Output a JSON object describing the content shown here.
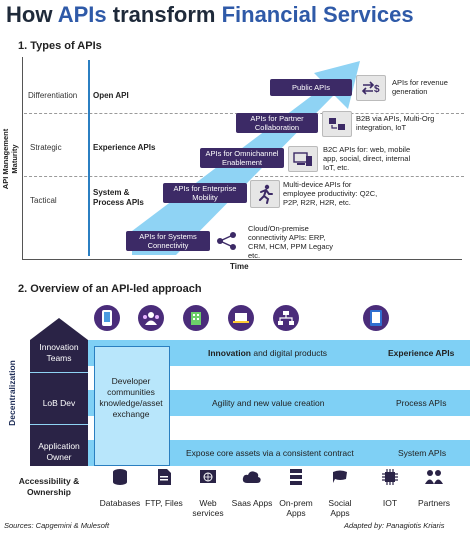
{
  "title": {
    "part1": "How ",
    "part2": "APIs",
    "part3": " transform ",
    "part4": "Financial Services"
  },
  "section1": {
    "heading": "1. Types of APIs",
    "y_axis_label": "API Management Maturity",
    "x_axis_label": "Time",
    "levels": [
      "Differentiation",
      "Strategic",
      "Tactical"
    ],
    "groups": [
      "Open API",
      "Experience APIs",
      "System & Process APIs"
    ],
    "steps": [
      {
        "box": "Public APIs",
        "icon": "exchange-dollar-icon",
        "desc": "APIs for revenue generation"
      },
      {
        "box": "APIs for Partner Collaboration",
        "icon": "b2b-icon",
        "desc": "B2B via APIs, Multi-Org integration, IoT"
      },
      {
        "box": "APIs for Omnichannel Enablement",
        "icon": "devices-icon",
        "desc": "B2C APIs for: web, mobile app, social, direct, internal IoT, etc."
      },
      {
        "box": "APIs for Enterprise Mobility",
        "icon": "running-person-icon",
        "desc": "Multi-device APIs for employee productivity: Q2C, P2P, R2R, H2R, etc."
      },
      {
        "box": "APIs for Systems Connectivity",
        "icon": "share-nodes-icon",
        "desc": "Cloud/On-premise connectivity APIs: ERP, CRM, HCM, PPM Legacy etc."
      }
    ]
  },
  "section2": {
    "heading": "2. Overview of an API-led approach",
    "left_axis_label": "Decentralization",
    "layers": [
      "Innovation Teams",
      "LoB Dev",
      "Application Owner"
    ],
    "bottom_left": "Accessibility & Ownership",
    "center_box": "Developer communities knowledge/asset exchange",
    "bands": [
      {
        "text_bold": "Innovation",
        "text_rest": " and digital products",
        "label": "Experience APIs"
      },
      {
        "text": "Agility and new value creation",
        "label": "Process APIs"
      },
      {
        "text": "Expose core assets via a consistent contract",
        "label": "System APIs"
      }
    ],
    "top_icons": [
      "mobile-phone-icon",
      "users-icon",
      "building-icon",
      "laptop-icon",
      "network-icon",
      "tablet-icon"
    ],
    "bottom_sources": [
      {
        "icon": "database-icon",
        "label": "Databases"
      },
      {
        "icon": "ftp-file-icon",
        "label": "FTP, Files"
      },
      {
        "icon": "web-globe-icon",
        "label": "Web services"
      },
      {
        "icon": "cloud-icon",
        "label": "Saas Apps"
      },
      {
        "icon": "server-icon",
        "label": "On-prem Apps"
      },
      {
        "icon": "social-icon",
        "label": "Social Apps"
      },
      {
        "icon": "iot-chip-icon",
        "label": "IOT"
      },
      {
        "icon": "partners-icon",
        "label": "Partners"
      }
    ]
  },
  "footer": {
    "sources": "Sources: Capgemini & Mulesoft",
    "adapted": "Adapted by: Panagiotis Kriaris"
  },
  "colors": {
    "purple": "#3c2a66",
    "navy": "#2a2346",
    "light_blue": "#7fd0f5",
    "arrow_blue": "#8fd3f4"
  }
}
